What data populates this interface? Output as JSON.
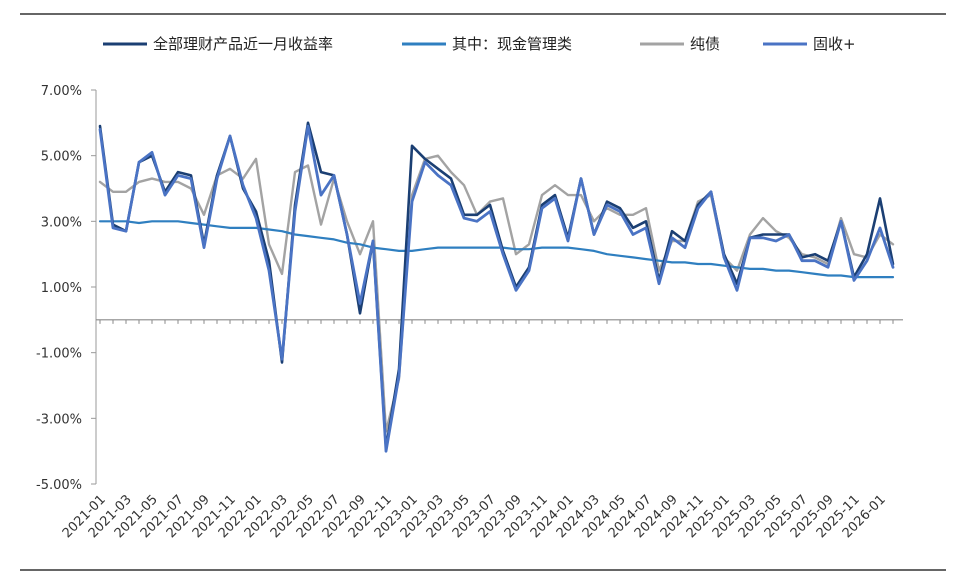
{
  "chart_data": {
    "type": "line",
    "x": [
      "2021-01",
      "2021-02",
      "2021-03",
      "2021-04",
      "2021-05",
      "2021-06",
      "2021-07",
      "2021-08",
      "2021-09",
      "2021-10",
      "2021-11",
      "2021-12",
      "2022-01",
      "2022-02",
      "2022-03",
      "2022-04",
      "2022-05",
      "2022-06",
      "2022-07",
      "2022-08",
      "2022-09",
      "2022-10",
      "2022-11",
      "2022-12",
      "2023-01",
      "2023-02",
      "2023-03",
      "2023-04",
      "2023-05",
      "2023-06",
      "2023-07",
      "2023-08",
      "2023-09",
      "2023-10",
      "2023-11",
      "2023-12",
      "2024-01",
      "2024-02",
      "2024-03",
      "2024-04",
      "2024-05",
      "2024-06",
      "2024-07",
      "2024-08",
      "2024-09",
      "2024-10",
      "2024-11",
      "2024-12",
      "2025-01",
      "2025-02",
      "2025-03",
      "2025-04",
      "2025-05",
      "2025-06",
      "2025-07",
      "2025-08",
      "2025-09",
      "2025-10",
      "2025-11",
      "2025-12",
      "2026-01",
      "2026-02"
    ],
    "x_tick_labels": [
      "2021-01",
      "2021-03",
      "2021-05",
      "2021-07",
      "2021-09",
      "2021-11",
      "2022-01",
      "2022-03",
      "2022-05",
      "2022-07",
      "2022-09",
      "2022-11",
      "2023-01",
      "2023-03",
      "2023-05",
      "2023-07",
      "2023-09",
      "2023-11",
      "2024-01",
      "2024-03",
      "2024-05",
      "2024-07",
      "2024-09",
      "2024-11",
      "2025-01",
      "2025-03",
      "2025-05",
      "2025-07",
      "2025-09",
      "2025-11",
      "2026-01"
    ],
    "y_tick_labels": [
      "7.00%",
      "5.00%",
      "3.00%",
      "1.00%",
      "-1.00%",
      "-3.00%",
      "-5.00%"
    ],
    "ylim": [
      -5,
      7
    ],
    "title": "",
    "xlabel": "",
    "ylabel": "",
    "grid": false,
    "legend_position": "top",
    "series": [
      {
        "name": "全部理财产品近一月收益率",
        "color": "#1b3f73",
        "values": [
          5.9,
          2.9,
          2.7,
          4.8,
          5.0,
          3.9,
          4.5,
          4.4,
          2.3,
          4.4,
          5.6,
          4.0,
          3.3,
          1.8,
          -1.3,
          3.5,
          6.0,
          4.5,
          4.4,
          2.6,
          0.2,
          2.4,
          -3.9,
          -1.5,
          5.3,
          4.9,
          4.6,
          4.3,
          3.2,
          3.2,
          3.5,
          2.1,
          1.0,
          1.6,
          3.5,
          3.8,
          2.5,
          4.3,
          2.6,
          3.6,
          3.4,
          2.8,
          3.0,
          1.2,
          2.7,
          2.4,
          3.5,
          3.9,
          2.0,
          1.1,
          2.5,
          2.6,
          2.6,
          2.6,
          1.9,
          2.0,
          1.8,
          3.0,
          1.3,
          2.0,
          3.7,
          1.7
        ]
      },
      {
        "name": "其中：现金管理类",
        "color": "#2f7fc0",
        "values": [
          3.0,
          3.0,
          3.0,
          2.95,
          3.0,
          3.0,
          3.0,
          2.95,
          2.9,
          2.85,
          2.8,
          2.8,
          2.8,
          2.75,
          2.7,
          2.6,
          2.55,
          2.5,
          2.45,
          2.35,
          2.3,
          2.2,
          2.15,
          2.1,
          2.1,
          2.15,
          2.2,
          2.2,
          2.2,
          2.2,
          2.2,
          2.2,
          2.15,
          2.15,
          2.2,
          2.2,
          2.2,
          2.15,
          2.1,
          2.0,
          1.95,
          1.9,
          1.85,
          1.8,
          1.75,
          1.75,
          1.7,
          1.7,
          1.65,
          1.6,
          1.55,
          1.55,
          1.5,
          1.5,
          1.45,
          1.4,
          1.35,
          1.35,
          1.3,
          1.3,
          1.3,
          1.3
        ]
      },
      {
        "name": "纯债",
        "color": "#a3a3a3",
        "values": [
          4.2,
          3.9,
          3.9,
          4.2,
          4.3,
          4.2,
          4.2,
          4.0,
          3.2,
          4.4,
          4.6,
          4.3,
          4.9,
          2.3,
          1.4,
          4.5,
          4.7,
          2.9,
          4.3,
          3.0,
          2.0,
          3.0,
          -3.4,
          -1.8,
          3.8,
          4.9,
          5.0,
          4.5,
          4.1,
          3.2,
          3.6,
          3.7,
          2.0,
          2.3,
          3.8,
          4.1,
          3.8,
          3.8,
          3.0,
          3.4,
          3.2,
          3.2,
          3.4,
          1.5,
          2.4,
          2.4,
          3.6,
          3.8,
          1.9,
          1.5,
          2.6,
          3.1,
          2.7,
          2.5,
          2.0,
          1.9,
          1.7,
          3.1,
          2.0,
          1.9,
          2.6,
          2.3
        ]
      },
      {
        "name": "固收+",
        "color": "#4a73c4",
        "values": [
          5.8,
          2.8,
          2.7,
          4.8,
          5.1,
          3.8,
          4.4,
          4.3,
          2.2,
          4.3,
          5.6,
          4.1,
          3.1,
          1.5,
          -1.2,
          3.3,
          5.9,
          3.8,
          4.4,
          2.6,
          0.5,
          2.4,
          -4.0,
          -1.7,
          3.6,
          4.8,
          4.4,
          4.1,
          3.1,
          3.0,
          3.3,
          2.0,
          0.9,
          1.5,
          3.4,
          3.7,
          2.4,
          4.3,
          2.6,
          3.5,
          3.3,
          2.6,
          2.8,
          1.1,
          2.5,
          2.2,
          3.4,
          3.9,
          1.9,
          0.9,
          2.5,
          2.5,
          2.4,
          2.6,
          1.8,
          1.8,
          1.6,
          3.0,
          1.2,
          1.8,
          2.8,
          1.6
        ]
      }
    ]
  }
}
